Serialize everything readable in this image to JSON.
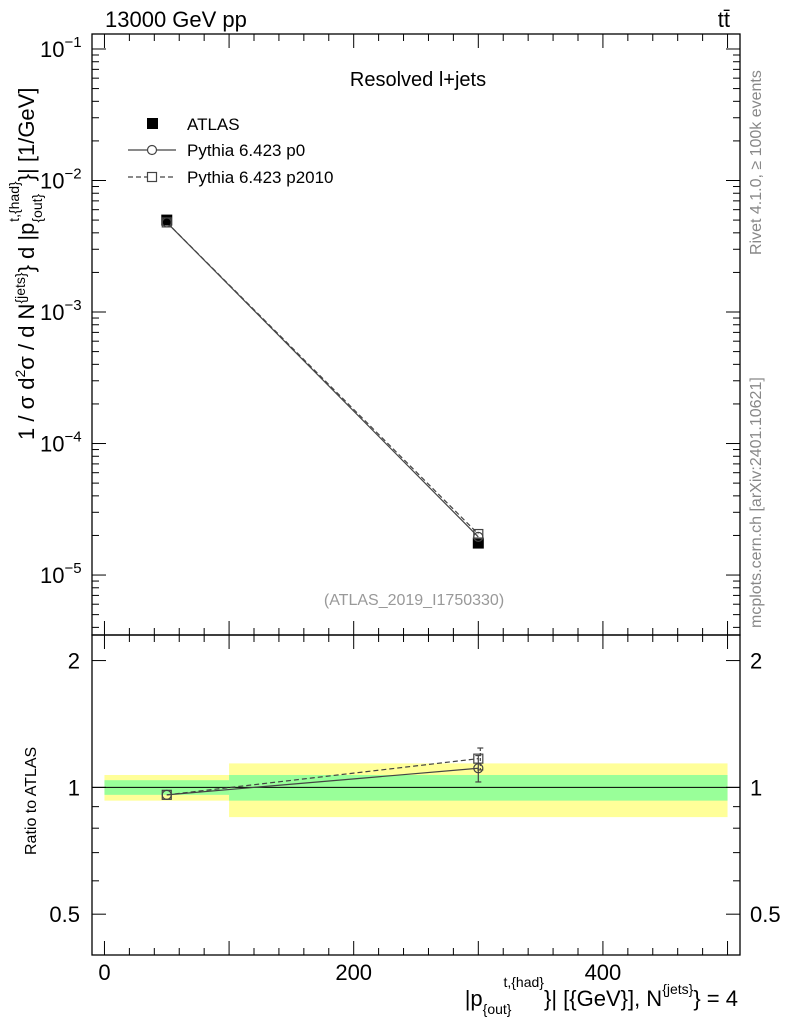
{
  "header": {
    "energy_label": "13000 GeV pp",
    "process_label": "tt̄"
  },
  "side_labels": {
    "rivet": "Rivet 4.1.0, ≥ 100k events",
    "mcplots": "mcplots.cern.ch [arXiv:2401.10621]"
  },
  "colors": {
    "band_inner": "#99ff99",
    "band_outer": "#ffff99",
    "data": "#000000",
    "mc": "#444444"
  },
  "chart_data": [
    {
      "type": "scatter",
      "panel": "main",
      "title": "Resolved l+jets",
      "analysis_label": "(ATLAS_2019_I1750330)",
      "ylabel": {
        "base": "1 / σ d²σ / d N^{jets} d |p_{out}^{t,{had}}| [1/GeV]",
        "part1": "1 / σ d",
        "sup1": "2",
        "part2": "σ / d N",
        "sup2": "{jets}",
        "part3": "} d |p",
        "sub3": "{out}",
        "sup3": "t,{had}",
        "part4": "}| [1/GeV]"
      },
      "yscale": "log",
      "ylim": [
        3.5e-06,
        0.13
      ],
      "xlim": [
        -10,
        510
      ],
      "ytick_labels": [
        {
          "value": 1e-05,
          "base": "10",
          "exp": "−5"
        },
        {
          "value": 0.0001,
          "base": "10",
          "exp": "−4"
        },
        {
          "value": 0.001,
          "base": "10",
          "exp": "−3"
        },
        {
          "value": 0.01,
          "base": "10",
          "exp": "−2"
        },
        {
          "value": 0.1,
          "base": "10",
          "exp": "−1"
        }
      ],
      "legend_position": "top-left",
      "series": [
        {
          "name": "ATLAS",
          "marker": "filled-square",
          "x": [
            50,
            300
          ],
          "y": [
            0.005,
            1.75e-05
          ]
        },
        {
          "name": "Pythia 6.423 p0",
          "marker": "open-circle",
          "line": "solid",
          "x": [
            50,
            300
          ],
          "y": [
            0.0048,
            1.95e-05
          ]
        },
        {
          "name": "Pythia 6.423 p2010",
          "marker": "open-square",
          "line": "dashed",
          "x": [
            50,
            300
          ],
          "y": [
            0.0048,
            2.05e-05
          ]
        }
      ]
    },
    {
      "type": "scatter",
      "panel": "ratio",
      "ylabel": "Ratio to ATLAS",
      "xlabel": {
        "part1": "|p",
        "sub1": "{out}",
        "sup1": "t,{had}",
        "part2": "}| [{GeV}], N",
        "sup2": "{jets}",
        "part3": "} = 4"
      },
      "ylim": [
        0.4,
        2.3
      ],
      "xlim": [
        -10,
        510
      ],
      "xtick_labels": [
        "0",
        "200",
        "400"
      ],
      "xtick_values": [
        0,
        200,
        400
      ],
      "ytick_labels": [
        "0.5",
        "1",
        "2"
      ],
      "ytick_values": [
        0.5,
        1,
        2
      ],
      "bands": [
        {
          "x_low": 0,
          "x_high": 100,
          "inner": [
            0.96,
            1.04
          ],
          "outer": [
            0.93,
            1.07
          ]
        },
        {
          "x_low": 100,
          "x_high": 500,
          "inner": [
            0.93,
            1.07
          ],
          "outer": [
            0.85,
            1.14
          ]
        }
      ],
      "series": [
        {
          "name": "Pythia 6.423 p0",
          "x": [
            50,
            300
          ],
          "y": [
            0.96,
            1.11
          ],
          "yerr": [
            0.0,
            0.08
          ]
        },
        {
          "name": "Pythia 6.423 p2010",
          "x": [
            50,
            300
          ],
          "y": [
            0.96,
            1.17
          ],
          "yerr": [
            0.0,
            0.07
          ]
        }
      ]
    }
  ]
}
